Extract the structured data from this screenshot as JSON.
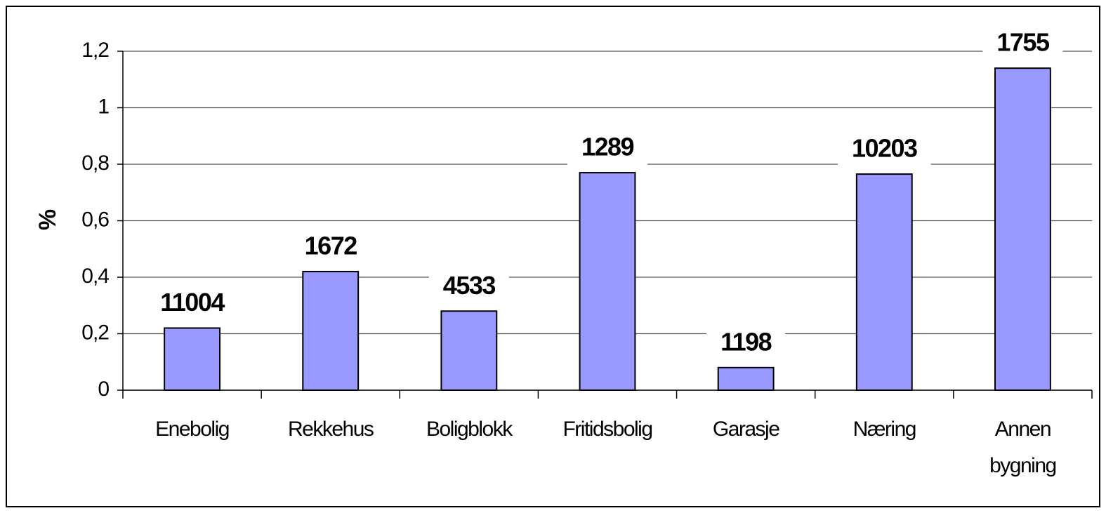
{
  "chart_data": {
    "type": "bar",
    "y_label": "%",
    "categories": [
      "Enebolig",
      "Rekkehus",
      "Boligblokk",
      "Fritidsbolig",
      "Garasje",
      "Næring",
      "Annen bygning"
    ],
    "values": [
      0.22,
      0.42,
      0.28,
      0.77,
      0.08,
      0.765,
      1.14
    ],
    "counts": [
      11004,
      1672,
      4533,
      1289,
      1198,
      10203,
      1755
    ],
    "color": "#9999ff",
    "ylim": [
      0,
      1.2
    ],
    "yticks": [
      0,
      {
        "value": 0.2,
        "label": "0,2"
      },
      {
        "value": 0.4,
        "label": "0,4"
      },
      {
        "value": 0.6,
        "label": "0,6"
      },
      {
        "value": 0.8,
        "label": "0,8"
      },
      1,
      {
        "value": 1.2,
        "label": "1,2"
      }
    ],
    "grid": true
  }
}
